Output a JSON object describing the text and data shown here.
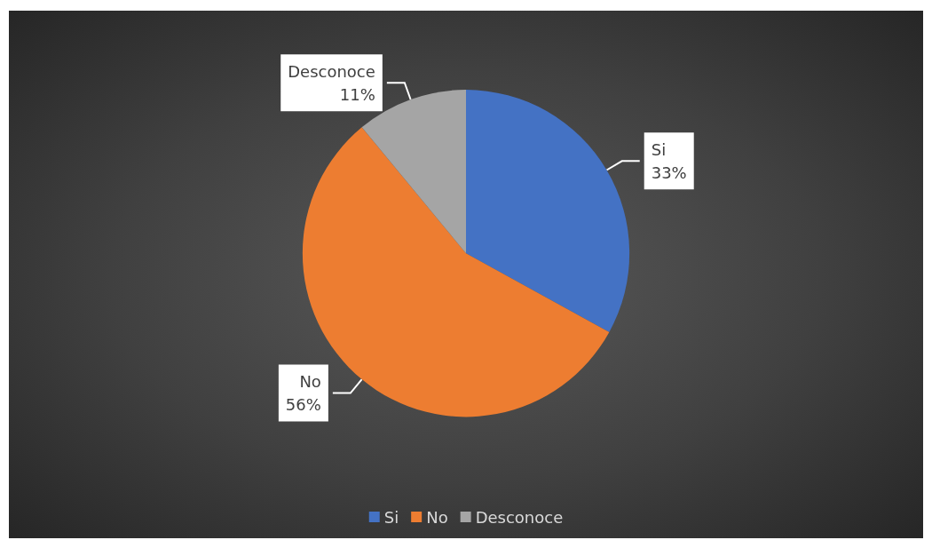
{
  "chart_data": {
    "type": "pie",
    "categories": [
      "Si",
      "No",
      "Desconoce"
    ],
    "values": [
      33,
      56,
      11
    ],
    "colors": [
      "#4472c4",
      "#ed7d31",
      "#a5a5a5"
    ],
    "value_labels": [
      "33%",
      "56%",
      "11%"
    ],
    "legend": "bottom"
  }
}
